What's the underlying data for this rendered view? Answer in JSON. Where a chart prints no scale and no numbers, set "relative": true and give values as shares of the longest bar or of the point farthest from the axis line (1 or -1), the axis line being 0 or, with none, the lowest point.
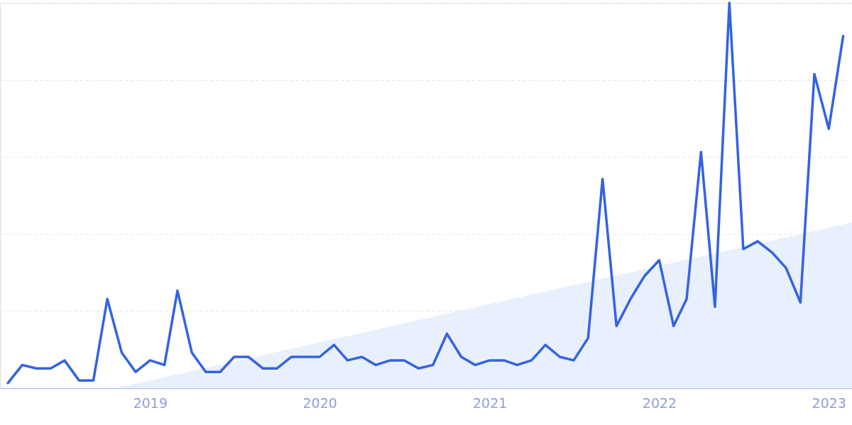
{
  "chart_data": {
    "type": "line",
    "relative": true,
    "grid": "y",
    "tick_labels": "x",
    "xlim": [
      "2018-02-12",
      "2023-02-20"
    ],
    "xticks": [
      "2019",
      "2020",
      "2021",
      "2022",
      "2023"
    ],
    "series": [
      {
        "type": "area",
        "color": "#e3ecfc",
        "x": [
          "2018-10-20",
          "2023-02-20"
        ],
        "values": [
          0,
          0.43
        ]
      },
      {
        "color": "#3362e3",
        "x": [
          "2018-03",
          "2018-04",
          "2018-05",
          "2018-06",
          "2018-07",
          "2018-08",
          "2018-09",
          "2018-10",
          "2018-11",
          "2018-12",
          "2019-01",
          "2019-02",
          "2019-03",
          "2019-04",
          "2019-05",
          "2019-06",
          "2019-07",
          "2019-08",
          "2019-09",
          "2019-10",
          "2019-11",
          "2019-12",
          "2020-01",
          "2020-02",
          "2020-03",
          "2020-04",
          "2020-05",
          "2020-06",
          "2020-07",
          "2020-08",
          "2020-09",
          "2020-10",
          "2020-11",
          "2020-12",
          "2021-01",
          "2021-02",
          "2021-03",
          "2021-04",
          "2021-05",
          "2021-06",
          "2021-07",
          "2021-08",
          "2021-09",
          "2021-10",
          "2021-11",
          "2021-12",
          "2022-01",
          "2022-02",
          "2022-03",
          "2022-04",
          "2022-05",
          "2022-06",
          "2022-07",
          "2022-08",
          "2022-09",
          "2022-10",
          "2022-11",
          "2022-12",
          "2023-01",
          "2023-02"
        ],
        "values": [
          0.013,
          0.06,
          0.051,
          0.051,
          0.072,
          0.02,
          0.02,
          0.231,
          0.092,
          0.042,
          0.072,
          0.06,
          0.253,
          0.092,
          0.042,
          0.042,
          0.081,
          0.081,
          0.051,
          0.051,
          0.081,
          0.081,
          0.081,
          0.112,
          0.072,
          0.081,
          0.06,
          0.072,
          0.072,
          0.051,
          0.06,
          0.141,
          0.081,
          0.06,
          0.072,
          0.072,
          0.06,
          0.072,
          0.112,
          0.081,
          0.072,
          0.13,
          0.543,
          0.161,
          0.233,
          0.292,
          0.332,
          0.161,
          0.231,
          0.613,
          0.211,
          1,
          0.361,
          0.381,
          0.352,
          0.312,
          0.222,
          0.815,
          0.673,
          0.914
        ]
      }
    ]
  }
}
